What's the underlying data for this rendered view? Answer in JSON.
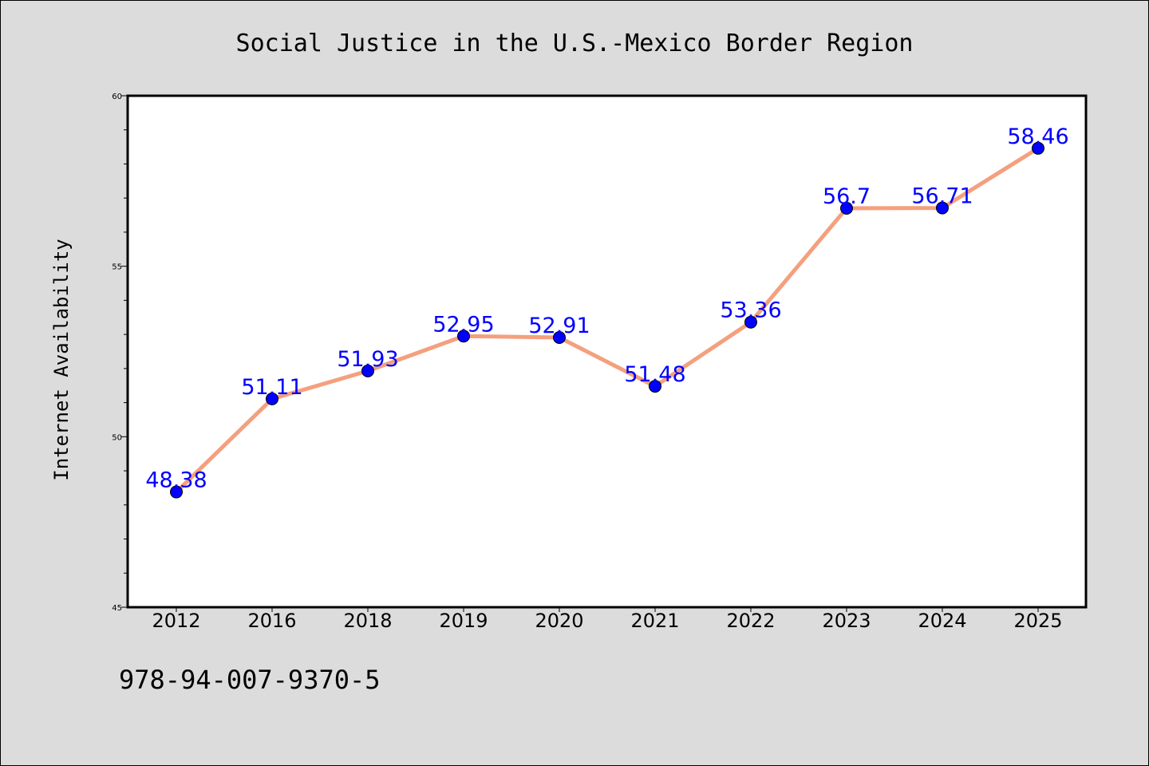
{
  "chart_data": {
    "type": "line",
    "title": "Social Justice in the U.S.-Mexico Border Region",
    "xlabel": "",
    "ylabel": "Internet Availability",
    "categories": [
      "2012",
      "2016",
      "2018",
      "2019",
      "2020",
      "2021",
      "2022",
      "2023",
      "2024",
      "2025"
    ],
    "series": [
      {
        "values": [
          48.38,
          51.11,
          51.93,
          52.95,
          52.91,
          51.48,
          53.36,
          56.7,
          56.71,
          58.46
        ],
        "labels": [
          "48.38",
          "51.11",
          "51.93",
          "52.95",
          "52.91",
          "51.48",
          "53.36",
          "56.7",
          "56.71",
          "58.46"
        ]
      }
    ],
    "ylim": [
      45,
      60
    ],
    "yticks": [
      45,
      50,
      55,
      60
    ],
    "ytick_labels": [
      "45",
      "50",
      "55",
      "60"
    ],
    "y_minor_step": 1,
    "grid": false,
    "legend": "none",
    "colors": {
      "line": "#f4a07e",
      "marker": "#0000ff",
      "data_label": "#0000ff",
      "background": "#dcdcdc",
      "plot_background": "#ffffff"
    }
  },
  "caption": "978-94-007-9370-5"
}
